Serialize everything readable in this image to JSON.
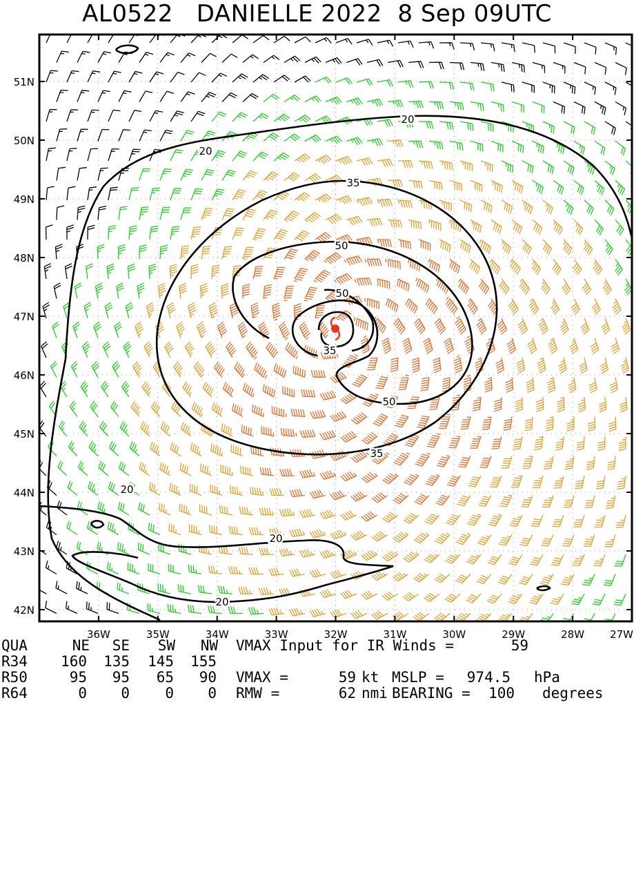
{
  "title": "AL0522   DANIELLE 2022  8 Sep 09UTC",
  "colors": {
    "black": "#000000",
    "green": "#22cc22",
    "yellow": "#e0a030",
    "orange": "#e07030",
    "red": "#ee3322"
  },
  "chart_data": {
    "type": "wind_field_contour",
    "storm": "DANIELLE",
    "basin_id": "AL0522",
    "year": "2022",
    "date": "8 Sep",
    "time": "09UTC",
    "center": {
      "lon": -31.9,
      "lat": 46.7
    },
    "xlim": [
      -37.0,
      -27.0
    ],
    "ylim": [
      41.8,
      51.8
    ],
    "x_ticks": [
      "36W",
      "35W",
      "34W",
      "33W",
      "32W",
      "31W",
      "30W",
      "29W",
      "28W",
      "27W"
    ],
    "x_tick_values": [
      -36,
      -35,
      -34,
      -33,
      -32,
      -31,
      -30,
      -29,
      -28,
      -27
    ],
    "y_ticks": [
      "51N",
      "50N",
      "49N",
      "48N",
      "47N",
      "46N",
      "45N",
      "44N",
      "43N",
      "42N"
    ],
    "y_tick_values": [
      51,
      50,
      49,
      48,
      47,
      46,
      45,
      44,
      43,
      42
    ],
    "contour_levels_kt": [
      20,
      35,
      50
    ],
    "contour_labels": [
      "20",
      "20",
      "35",
      "50",
      "50",
      "35",
      "50",
      "35",
      "20",
      "20",
      "20"
    ],
    "grid": true
  },
  "footer": {
    "headers": [
      "QUA",
      "NE",
      "SE",
      "SW",
      "NW"
    ],
    "rows": [
      {
        "label": "R34",
        "values": [
          "160",
          "135",
          "145",
          "155"
        ]
      },
      {
        "label": "R50",
        "values": [
          "95",
          "95",
          "65",
          "90"
        ]
      },
      {
        "label": "R64",
        "values": [
          "0",
          "0",
          "0",
          "0"
        ]
      }
    ],
    "vmax_input_label": "VMAX Input for IR Winds =",
    "vmax_input_value": "59",
    "vmax_label": "VMAX =",
    "vmax_value": "59",
    "vmax_unit": "kt",
    "mslp_label": "MSLP =",
    "mslp_value": "974.5",
    "mslp_unit": "hPa",
    "rmw_label": "RMW =",
    "rmw_value": "62",
    "rmw_unit": "nmi",
    "bearing_label": "BEARING =",
    "bearing_value": "100",
    "bearing_unit": "degrees"
  }
}
